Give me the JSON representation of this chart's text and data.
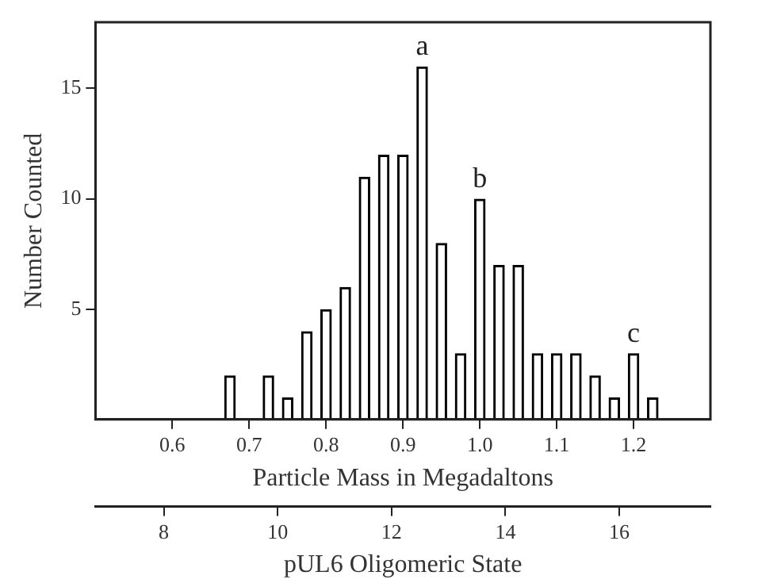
{
  "chart_data": {
    "type": "bar",
    "xlabel": "Particle Mass in Megadaltons",
    "ylabel": "Number Counted",
    "x2label": "pUL6 Oligomeric State",
    "x": [
      0.675,
      0.725,
      0.75,
      0.775,
      0.8,
      0.825,
      0.85,
      0.875,
      0.9,
      0.925,
      0.95,
      0.975,
      1.0,
      1.025,
      1.05,
      1.075,
      1.1,
      1.125,
      1.15,
      1.175,
      1.2,
      1.225
    ],
    "values": [
      2,
      2,
      1,
      4,
      5,
      6,
      11,
      12,
      12,
      16,
      8,
      3,
      10,
      7,
      7,
      3,
      3,
      3,
      2,
      1,
      3,
      1
    ],
    "color": "#000000",
    "xlim": [
      0.5,
      1.3
    ],
    "xticks": [
      {
        "value": 0.6,
        "label": "0.6"
      },
      {
        "value": 0.7,
        "label": "0.7"
      },
      {
        "value": 0.8,
        "label": "0.8"
      },
      {
        "value": 0.9,
        "label": "0.9"
      },
      {
        "value": 1.0,
        "label": "1.0"
      },
      {
        "value": 1.1,
        "label": "1.1"
      },
      {
        "value": 1.2,
        "label": "1.2"
      }
    ],
    "ylim": [
      0,
      18
    ],
    "yticks": [
      5,
      10,
      15
    ],
    "x2lim": [
      6.8,
      17.6
    ],
    "x2ticks": [
      8,
      10,
      12,
      14,
      16
    ],
    "annotations": [
      {
        "text": "a",
        "x": 0.925,
        "y": 16
      },
      {
        "text": "b",
        "x": 1.0,
        "y": 10
      },
      {
        "text": "c",
        "x": 1.2,
        "y": 3
      }
    ],
    "grid": false,
    "legend": false
  }
}
